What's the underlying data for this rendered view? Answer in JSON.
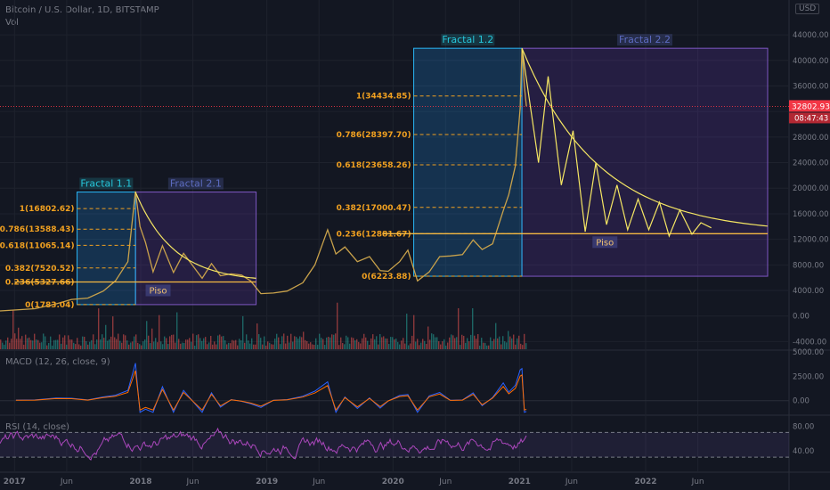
{
  "header": {
    "symbol": "Bitcoin / U.S. Dollar, 1D, BITSTAMP",
    "vol_label": "Vol",
    "currency": "USD"
  },
  "chart_data": {
    "type": "line",
    "title": "Bitcoin / U.S. Dollar, 1D, BITSTAMP",
    "x_ticks": [
      "2017",
      "Jun",
      "2018",
      "Jun",
      "2019",
      "Jun",
      "2020",
      "Jun",
      "2021",
      "Jun",
      "2022",
      "Jun"
    ],
    "price_ticks": [
      44000,
      40000,
      36000,
      32000,
      28000,
      24000,
      20000,
      16000,
      12000,
      8000,
      4000,
      0,
      -4000
    ],
    "price_tick_labels": [
      "44000.00",
      "40000.00",
      "36000.00",
      "",
      "28000.00",
      "24000.00",
      "20000.00",
      "16000.00",
      "12000.00",
      "8000.00",
      "4000.00",
      "0.00",
      "-4000.00"
    ],
    "ylim": [
      -5200,
      47500
    ],
    "last_price": "32802.93",
    "countdown": "08:47:43",
    "price_series": {
      "dates": [
        "2016-11-20",
        "2017-01-05",
        "2017-03-01",
        "2017-05-01",
        "2017-06-15",
        "2017-08-01",
        "2017-09-15",
        "2017-10-20",
        "2017-11-25",
        "2017-12-17",
        "2017-12-30",
        "2018-01-15",
        "2018-02-06",
        "2018-03-05",
        "2018-04-06",
        "2018-05-05",
        "2018-06-28",
        "2018-07-25",
        "2018-08-20",
        "2018-09-20",
        "2018-10-20",
        "2018-11-15",
        "2018-12-15",
        "2019-01-20",
        "2019-03-01",
        "2019-04-15",
        "2019-05-20",
        "2019-06-26",
        "2019-07-20",
        "2019-08-15",
        "2019-09-20",
        "2019-10-25",
        "2019-11-25",
        "2019-12-18",
        "2020-01-20",
        "2020-02-13",
        "2020-03-12",
        "2020-04-15",
        "2020-05-15",
        "2020-06-15",
        "2020-07-20",
        "2020-08-20",
        "2020-09-15",
        "2020-10-15",
        "2020-11-15",
        "2020-12-01",
        "2020-12-20",
        "2021-01-03",
        "2021-01-08",
        "2021-01-15",
        "2021-01-21"
      ],
      "values": [
        800,
        950,
        1150,
        1900,
        2600,
        2800,
        3900,
        5500,
        8500,
        19500,
        14000,
        11500,
        6900,
        11000,
        6800,
        9800,
        5900,
        8200,
        6300,
        6600,
        6400,
        5500,
        3500,
        3600,
        3900,
        5200,
        8000,
        13500,
        9700,
        10800,
        8500,
        9300,
        7100,
        7000,
        8500,
        10300,
        5500,
        6900,
        9300,
        9400,
        9600,
        11900,
        10400,
        11300,
        16500,
        19000,
        23500,
        32500,
        41900,
        36000,
        32800
      ]
    },
    "macd": {
      "label": "MACD (12, 26, close, 9)",
      "ticks": [
        5000,
        2500,
        0
      ],
      "tick_labels": [
        "5000.00",
        "2500.00",
        "0.00"
      ],
      "ylim": [
        -1400,
        5000
      ]
    },
    "rsi": {
      "label": "RSI (14, close)",
      "ticks": [
        80,
        40
      ],
      "tick_labels": [
        "80.00",
        "40.00"
      ],
      "bands": [
        70,
        30
      ],
      "ylim": [
        10,
        95
      ]
    },
    "fibonacci": [
      {
        "name": "Fractal 1.1",
        "box_x": [
          "2017-07-01",
          "2017-12-17"
        ],
        "base": 1783.04,
        "top": 19400,
        "levels": [
          {
            "label": "1(16802.62)",
            "value": 16802.62
          },
          {
            "label": "0.786(13588.43)",
            "value": 13588.43
          },
          {
            "label": "0.618(11065.14)",
            "value": 11065.14
          },
          {
            "label": "0.382(7520.52)",
            "value": 7520.52
          },
          {
            "label": "0.236(5327.66)",
            "value": 5327.66
          },
          {
            "label": "0(1783.04)",
            "value": 1783.04
          }
        ]
      },
      {
        "name": "Fractal 1.2",
        "box_x": [
          "2020-03-01",
          "2021-01-08"
        ],
        "base": 6223.88,
        "top": 41900,
        "levels": [
          {
            "label": "1(34434.85)",
            "value": 34434.85
          },
          {
            "label": "0.786(28397.70)",
            "value": 28397.7
          },
          {
            "label": "0.618(23658.26)",
            "value": 23658.26
          },
          {
            "label": "0.382(17000.47)",
            "value": 17000.47
          },
          {
            "label": "0.236(12881.67)",
            "value": 12881.67
          },
          {
            "label": "0(6223.88)",
            "value": 6223.88
          }
        ]
      }
    ],
    "projection_boxes": [
      {
        "name": "Fractal 2.1",
        "box_x": [
          "2017-12-17",
          "2018-12-01"
        ],
        "box_y": [
          1783.04,
          19400
        ]
      },
      {
        "name": "Fractal 2.2",
        "box_x": [
          "2021-01-08",
          "2022-12-20"
        ],
        "box_y": [
          6223.88,
          41900
        ]
      }
    ],
    "floors": [
      {
        "label": "Piso",
        "x": [
          "2017-01-01",
          "2018-12-01"
        ],
        "value": 5327.66
      },
      {
        "label": "Piso",
        "x": [
          "2019-12-01",
          "2022-12-20"
        ],
        "value": 12881.67
      }
    ],
    "projected_path": {
      "dates": [
        "2021-01-08",
        "2021-02-25",
        "2021-03-25",
        "2021-05-02",
        "2021-06-05",
        "2021-07-10",
        "2021-08-10",
        "2021-09-10",
        "2021-10-10",
        "2021-11-10",
        "2021-12-10",
        "2022-01-10",
        "2022-02-10",
        "2022-03-10",
        "2022-04-10",
        "2022-05-15",
        "2022-06-10",
        "2022-07-10"
      ],
      "values": [
        41900,
        24000,
        37500,
        20500,
        29000,
        13200,
        24000,
        14300,
        20500,
        13500,
        18300,
        13500,
        17800,
        12500,
        16600,
        12800,
        14600,
        13800
      ]
    },
    "colors": {
      "fib": "#f0a020",
      "fractal_label": "#26c6da",
      "projection_label": "#5c6bc0",
      "curve": "#f5e663",
      "price": "#c9a24b",
      "macd": "#2962ff",
      "signal": "#ff6d00",
      "rsi": "#ab47bc",
      "last_price_bg": "#f23645"
    }
  }
}
